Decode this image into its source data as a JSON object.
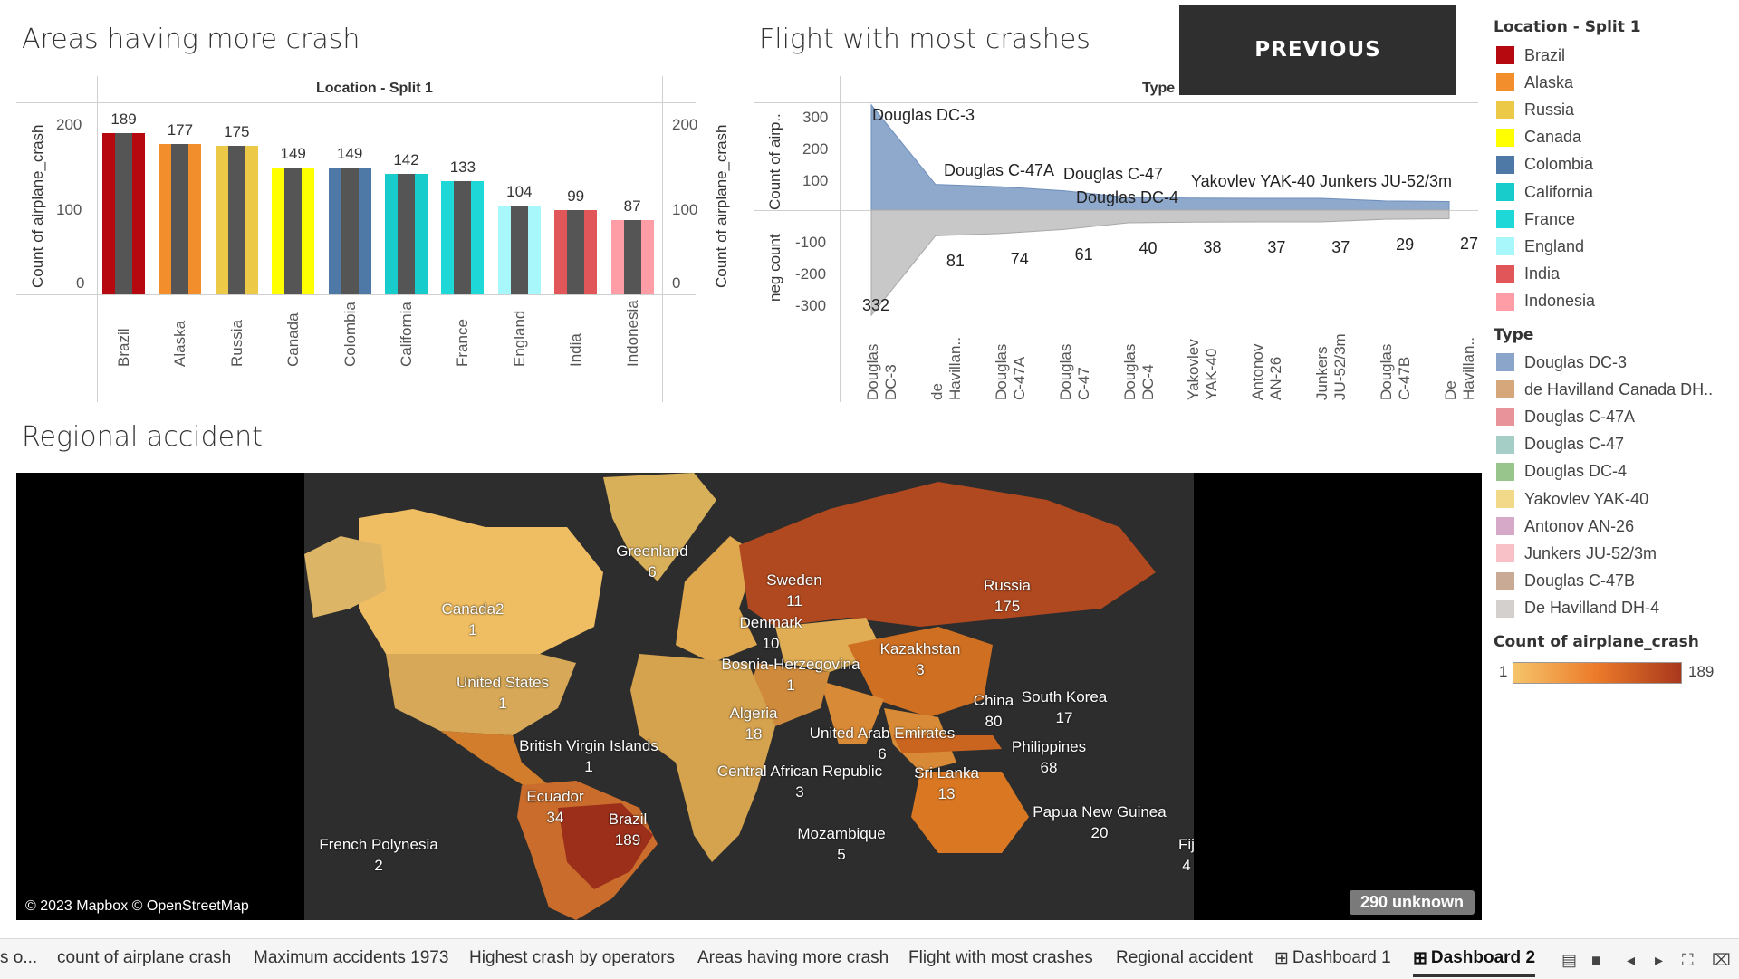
{
  "bar_panel": {
    "title": "Areas having more crash",
    "header": "Location - Split 1",
    "ylabel": "Count of airplane_crash",
    "yticks": [
      "200",
      "100",
      "0"
    ]
  },
  "area_panel": {
    "title": "Flight with most crashes",
    "header": "Type",
    "ylabel_top": "Count of airp..",
    "ylabel_bottom": "neg count",
    "yticks_top": [
      "300",
      "200",
      "100"
    ],
    "yticks_bottom": [
      "-100",
      "-200",
      "-300"
    ],
    "top_labels": [
      "Douglas DC-3",
      "Douglas C-47A",
      "Douglas C-47",
      "Douglas DC-4",
      "Yakovlev YAK-40",
      "Junkers JU-52/3m"
    ],
    "bottom_values": [
      "332",
      "81",
      "74",
      "61",
      "40",
      "38",
      "37",
      "37",
      "29",
      "27"
    ],
    "xticks": [
      "Douglas DC-3",
      "de Havillan..",
      "Douglas C-47A",
      "Douglas C-47",
      "Douglas DC-4",
      "Yakovlev YAK-40",
      "Antonov AN-26",
      "Junkers JU-52/3m",
      "Douglas C-47B",
      "De Havillan.."
    ]
  },
  "button": {
    "label": "PREVIOUS"
  },
  "map_panel": {
    "title": "Regional accident",
    "attribution": "© 2023 Mapbox © OpenStreetMap",
    "unknown_badge": "290 unknown",
    "labels": [
      {
        "name": "Greenland",
        "value": "6"
      },
      {
        "name": "Sweden",
        "value": "11"
      },
      {
        "name": "Russia",
        "value": "175"
      },
      {
        "name": "Canada2",
        "value": "1"
      },
      {
        "name": "Denmark",
        "value": "10"
      },
      {
        "name": "Kazakhstan",
        "value": "3"
      },
      {
        "name": "Bosnia-Herzegovina",
        "value": "1"
      },
      {
        "name": "United States",
        "value": "1"
      },
      {
        "name": "China",
        "value": "80"
      },
      {
        "name": "South Korea",
        "value": "17"
      },
      {
        "name": "Algeria",
        "value": "18"
      },
      {
        "name": "United Arab Emirates",
        "value": "6"
      },
      {
        "name": "British Virgin Islands",
        "value": "1"
      },
      {
        "name": "Philippines",
        "value": "68"
      },
      {
        "name": "Central African Republic",
        "value": "3"
      },
      {
        "name": "Sri Lanka",
        "value": "13"
      },
      {
        "name": "Ecuador",
        "value": "34"
      },
      {
        "name": "Papua New Guinea",
        "value": "20"
      },
      {
        "name": "Brazil",
        "value": "189"
      },
      {
        "name": "Mozambique",
        "value": "5"
      },
      {
        "name": "French Polynesia",
        "value": "2"
      },
      {
        "name": "Fij",
        "value": "4"
      }
    ]
  },
  "legend_location": {
    "title": "Location - Split 1",
    "items": [
      {
        "label": "Brazil",
        "color": "#b5090f"
      },
      {
        "label": "Alaska",
        "color": "#f28e2b"
      },
      {
        "label": "Russia",
        "color": "#edc948"
      },
      {
        "label": "Canada",
        "color": "#ffff00"
      },
      {
        "label": "Colombia",
        "color": "#4e79a7"
      },
      {
        "label": "California",
        "color": "#19cccc"
      },
      {
        "label": "France",
        "color": "#1ed8d8"
      },
      {
        "label": "England",
        "color": "#a8f7fb"
      },
      {
        "label": "India",
        "color": "#e15759"
      },
      {
        "label": "Indonesia",
        "color": "#ff9da7"
      }
    ]
  },
  "legend_type": {
    "title": "Type",
    "items": [
      {
        "label": "Douglas DC-3",
        "color": "#8aa5c9"
      },
      {
        "label": "de Havilland Canada DH..",
        "color": "#d6a77a"
      },
      {
        "label": "Douglas C-47A",
        "color": "#e8939a"
      },
      {
        "label": "Douglas C-47",
        "color": "#a5cfc6"
      },
      {
        "label": "Douglas DC-4",
        "color": "#98c58c"
      },
      {
        "label": "Yakovlev YAK-40",
        "color": "#f2d98a"
      },
      {
        "label": "Antonov AN-26",
        "color": "#d6a9c8"
      },
      {
        "label": "Junkers JU-52/3m",
        "color": "#f8c1c8"
      },
      {
        "label": "Douglas C-47B",
        "color": "#c9ab95"
      },
      {
        "label": "De Havilland DH-4",
        "color": "#d3d0cd"
      }
    ]
  },
  "legend_count": {
    "title": "Count of airplane_crash",
    "min": "1",
    "max": "189",
    "color_min": "#f6c46a",
    "color_max": "#a8381c"
  },
  "tabs": [
    {
      "label": "s o..."
    },
    {
      "label": "count of airplane crash"
    },
    {
      "label": "Maximum accidents 1973"
    },
    {
      "label": "Highest crash by operators"
    },
    {
      "label": "Areas having more crash"
    },
    {
      "label": "Flight with most crashes"
    },
    {
      "label": "Regional accident"
    },
    {
      "label": "Dashboard 1"
    },
    {
      "label": "Dashboard 2"
    }
  ],
  "chart_data": [
    {
      "type": "bar",
      "title": "Areas having more crash",
      "ylabel": "Count of airplane_crash",
      "categories": [
        "Brazil",
        "Alaska",
        "Russia",
        "Canada",
        "Colombia",
        "California",
        "France",
        "England",
        "India",
        "Indonesia"
      ],
      "values": [
        189,
        177,
        175,
        149,
        149,
        142,
        133,
        104,
        99,
        87
      ],
      "colors": [
        "#b5090f",
        "#f28e2b",
        "#edc948",
        "#ffff00",
        "#4e79a7",
        "#19cccc",
        "#1ed8d8",
        "#a8f7fb",
        "#e15759",
        "#ff9da7"
      ],
      "ylim": [
        0,
        230
      ],
      "legend": "right"
    },
    {
      "type": "area",
      "title": "Flight with most crashes",
      "categories": [
        "Douglas DC-3",
        "de Havilland Canada DH..",
        "Douglas C-47A",
        "Douglas C-47",
        "Douglas DC-4",
        "Yakovlev YAK-40",
        "Antonov AN-26",
        "Junkers JU-52/3m",
        "Douglas C-47B",
        "De Havilland DH-4"
      ],
      "series": [
        {
          "name": "Count of airp..",
          "values": [
            332,
            81,
            74,
            61,
            40,
            38,
            37,
            37,
            29,
            27
          ]
        },
        {
          "name": "neg count",
          "values": [
            -332,
            -81,
            -74,
            -61,
            -40,
            -38,
            -37,
            -37,
            -29,
            -27
          ]
        }
      ],
      "ylim": [
        -350,
        350
      ]
    }
  ]
}
